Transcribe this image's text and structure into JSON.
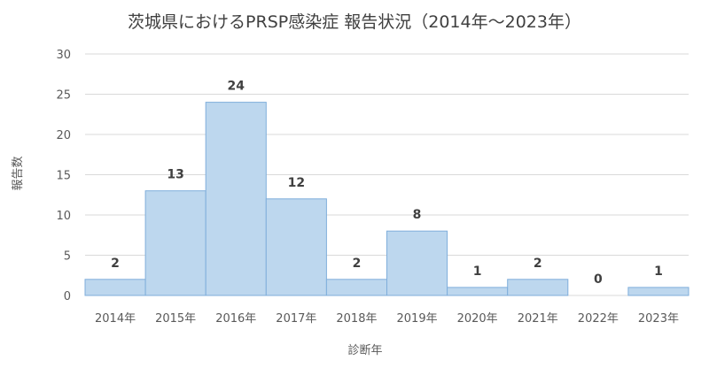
{
  "chart_data": {
    "type": "bar",
    "title": "茨城県におけるPRSP感染症 報告状況（2014年～2023年）",
    "xlabel": "診断年",
    "ylabel": "報告数",
    "categories": [
      "2014年",
      "2015年",
      "2016年",
      "2017年",
      "2018年",
      "2019年",
      "2020年",
      "2021年",
      "2022年",
      "2023年"
    ],
    "values": [
      2,
      13,
      24,
      12,
      2,
      8,
      1,
      2,
      0,
      1
    ],
    "ylim": [
      0,
      30
    ],
    "yticks": [
      "0",
      "5",
      "10",
      "15",
      "20",
      "25",
      "30"
    ],
    "grid": true,
    "legend": "none",
    "colors": {
      "bar_fill": "#BDD7EE",
      "bar_stroke": "#7FAEDB",
      "grid": "#D9D9D9"
    }
  }
}
